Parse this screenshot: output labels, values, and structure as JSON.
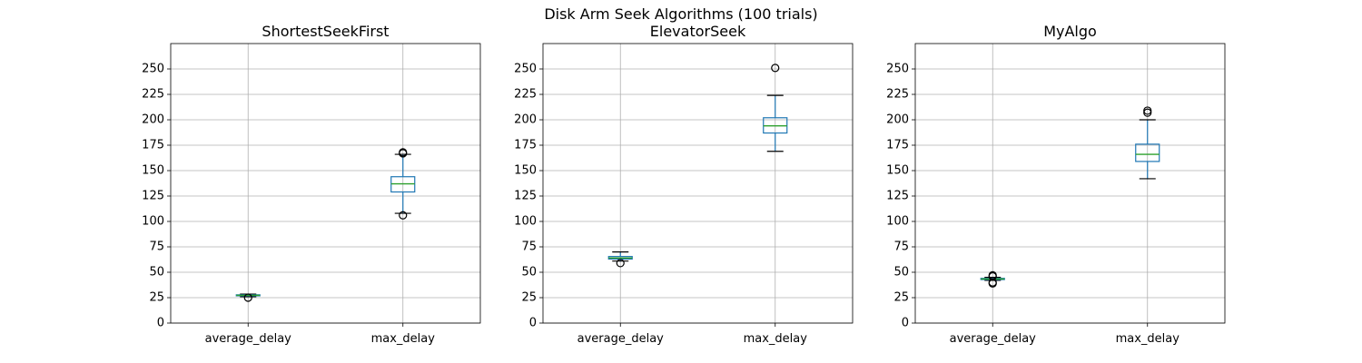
{
  "figure": {
    "suptitle": "Disk Arm Seek Algorithms (100 trials)"
  },
  "style": {
    "box_color": "#1f77b4",
    "median_color": "#2ca02c",
    "grid_color": "#b0b0b0",
    "flier_color": "#000000"
  },
  "chart_data": [
    {
      "type": "box",
      "title": "ShortestSeekFirst",
      "xlabel": "",
      "ylabel": "",
      "categories": [
        "average_delay",
        "max_delay"
      ],
      "ylim": [
        0,
        275
      ],
      "yticks": [
        0,
        25,
        50,
        75,
        100,
        125,
        150,
        175,
        200,
        225,
        250
      ],
      "grid": true,
      "boxes": [
        {
          "category": "average_delay",
          "whisker_low": 26.0,
          "q1": 26.8,
          "median": 27.3,
          "q3": 27.8,
          "whisker_high": 28.5,
          "fliers": [
            25.0
          ]
        },
        {
          "category": "max_delay",
          "whisker_low": 108,
          "q1": 129,
          "median": 137,
          "q3": 144,
          "whisker_high": 166,
          "fliers": [
            106,
            167,
            168
          ]
        }
      ]
    },
    {
      "type": "box",
      "title": "ElevatorSeek",
      "xlabel": "",
      "ylabel": "",
      "categories": [
        "average_delay",
        "max_delay"
      ],
      "ylim": [
        0,
        275
      ],
      "yticks": [
        0,
        25,
        50,
        75,
        100,
        125,
        150,
        175,
        200,
        225,
        250
      ],
      "grid": true,
      "boxes": [
        {
          "category": "average_delay",
          "whisker_low": 61,
          "q1": 63,
          "median": 64,
          "q3": 65.5,
          "whisker_high": 70,
          "fliers": [
            59
          ]
        },
        {
          "category": "max_delay",
          "whisker_low": 169,
          "q1": 187,
          "median": 194,
          "q3": 202,
          "whisker_high": 224,
          "fliers": [
            251
          ]
        }
      ]
    },
    {
      "type": "box",
      "title": "MyAlgo",
      "xlabel": "",
      "ylabel": "",
      "categories": [
        "average_delay",
        "max_delay"
      ],
      "ylim": [
        0,
        275
      ],
      "yticks": [
        0,
        25,
        50,
        75,
        100,
        125,
        150,
        175,
        200,
        225,
        250
      ],
      "grid": true,
      "boxes": [
        {
          "category": "average_delay",
          "whisker_low": 42,
          "q1": 42.8,
          "median": 43.4,
          "q3": 44,
          "whisker_high": 45,
          "fliers": [
            39,
            40,
            46,
            47
          ]
        },
        {
          "category": "max_delay",
          "whisker_low": 142,
          "q1": 159,
          "median": 166,
          "q3": 176,
          "whisker_high": 200,
          "fliers": [
            207,
            209
          ]
        }
      ]
    }
  ]
}
